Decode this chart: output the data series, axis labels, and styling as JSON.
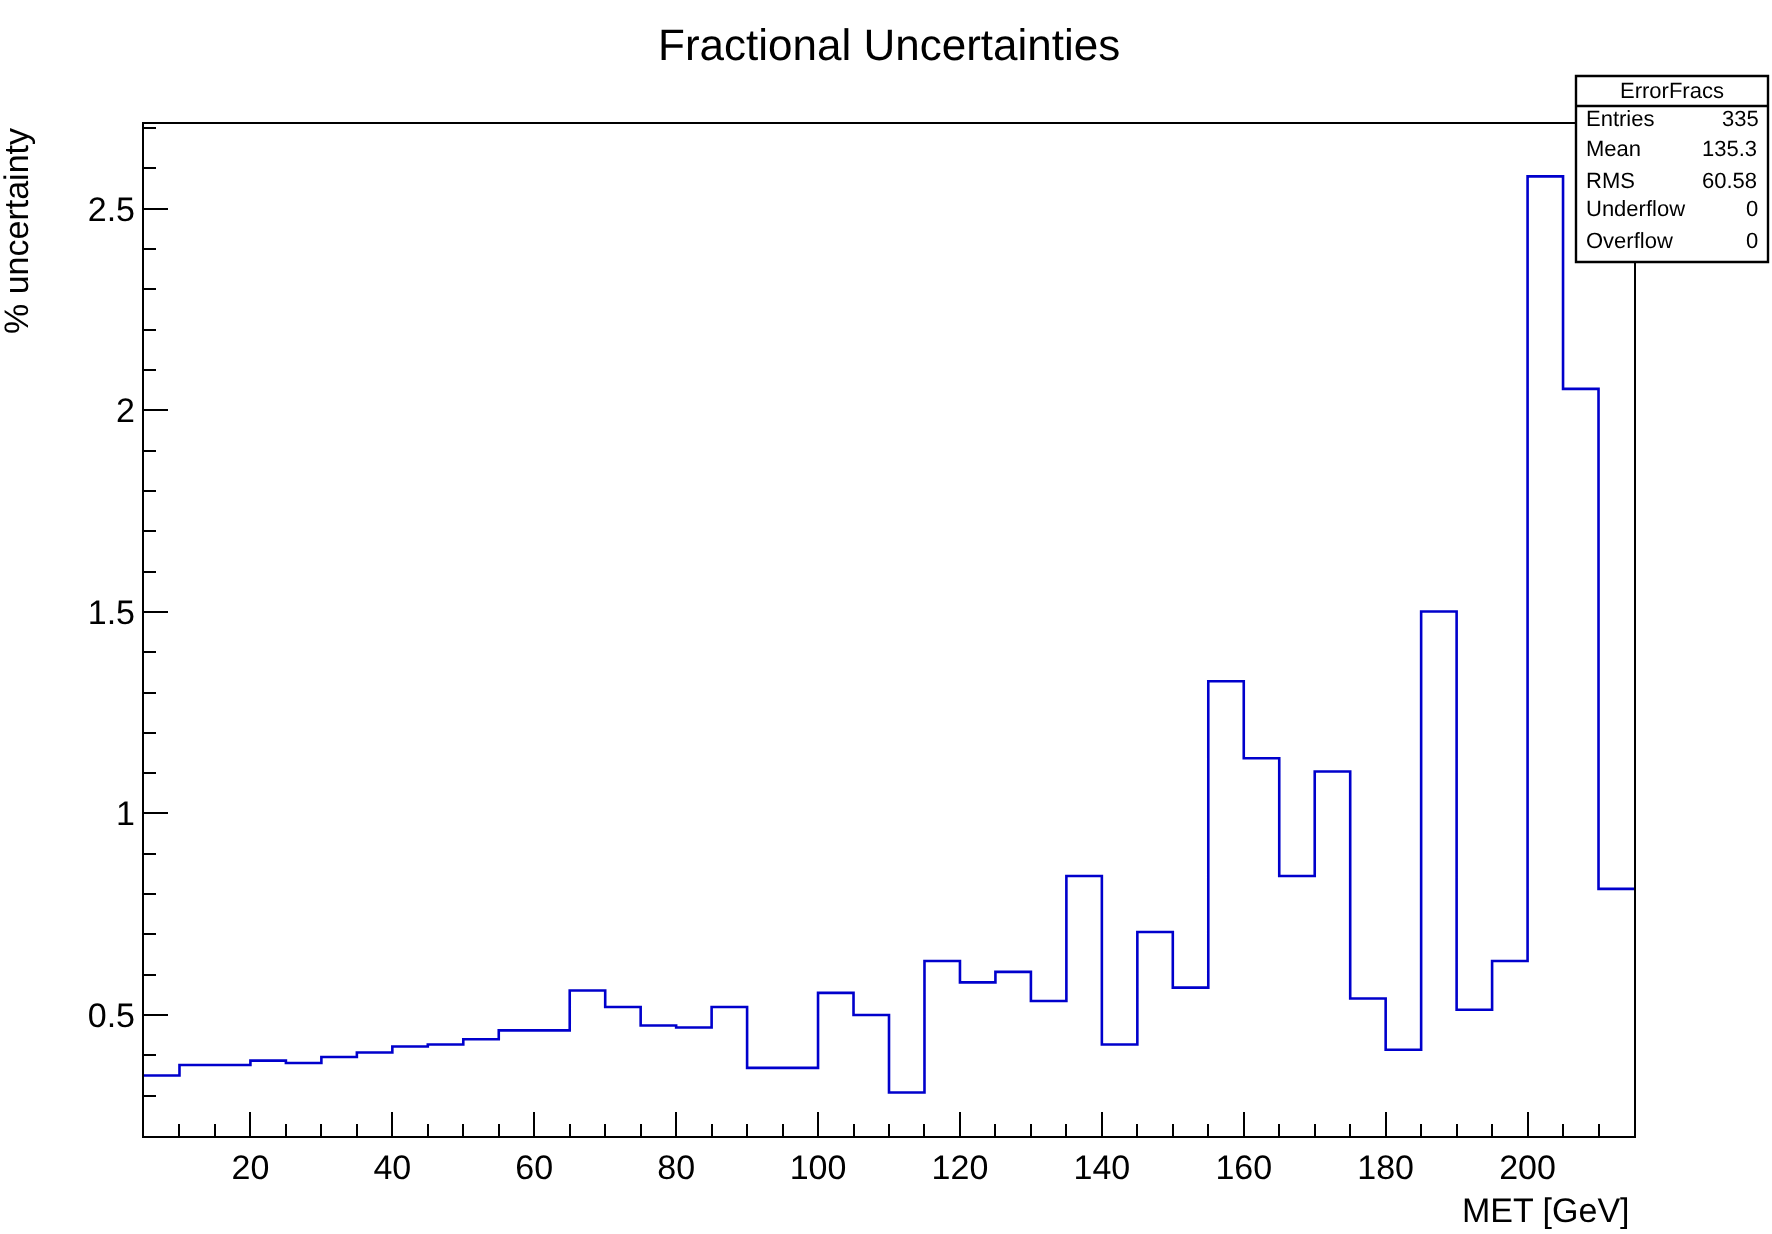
{
  "chart_data": {
    "type": "histogram",
    "title": "Fractional Uncertainties",
    "xlabel": "MET [GeV]",
    "ylabel": "% uncertainty",
    "bins": [
      5,
      10,
      15,
      20,
      25,
      30,
      35,
      40,
      45,
      50,
      55,
      60,
      65,
      70,
      75,
      80,
      85,
      90,
      95,
      100,
      105,
      110,
      115,
      120,
      125,
      130,
      135,
      140,
      145,
      150,
      155,
      160,
      165,
      170,
      175,
      180,
      185,
      190,
      195,
      200,
      205,
      210,
      215
    ],
    "values": [
      0.35,
      0.376,
      0.376,
      0.387,
      0.381,
      0.396,
      0.407,
      0.422,
      0.427,
      0.44,
      0.462,
      0.462,
      0.561,
      0.52,
      0.474,
      0.469,
      0.52,
      0.369,
      0.369,
      0.555,
      0.5,
      0.308,
      0.634,
      0.581,
      0.607,
      0.535,
      0.845,
      0.427,
      0.706,
      0.568,
      1.328,
      1.137,
      0.845,
      1.104,
      0.541,
      0.414,
      1.501,
      0.513,
      0.634,
      2.58,
      2.053,
      0.813
    ],
    "color": "#0000cc",
    "xlim": [
      5,
      215
    ],
    "xticks": [
      20,
      40,
      60,
      80,
      100,
      120,
      140,
      160,
      180,
      200
    ],
    "ylim": [
      0.2,
      2.71
    ],
    "yticks": [
      0.5,
      1,
      1.5,
      2,
      2.5
    ],
    "annotations": [
      "ErrorFracs",
      "Entries",
      "335",
      "Mean",
      "135.3",
      "RMS",
      "60.58",
      "Underflow",
      "0",
      "Overflow",
      "0"
    ]
  }
}
